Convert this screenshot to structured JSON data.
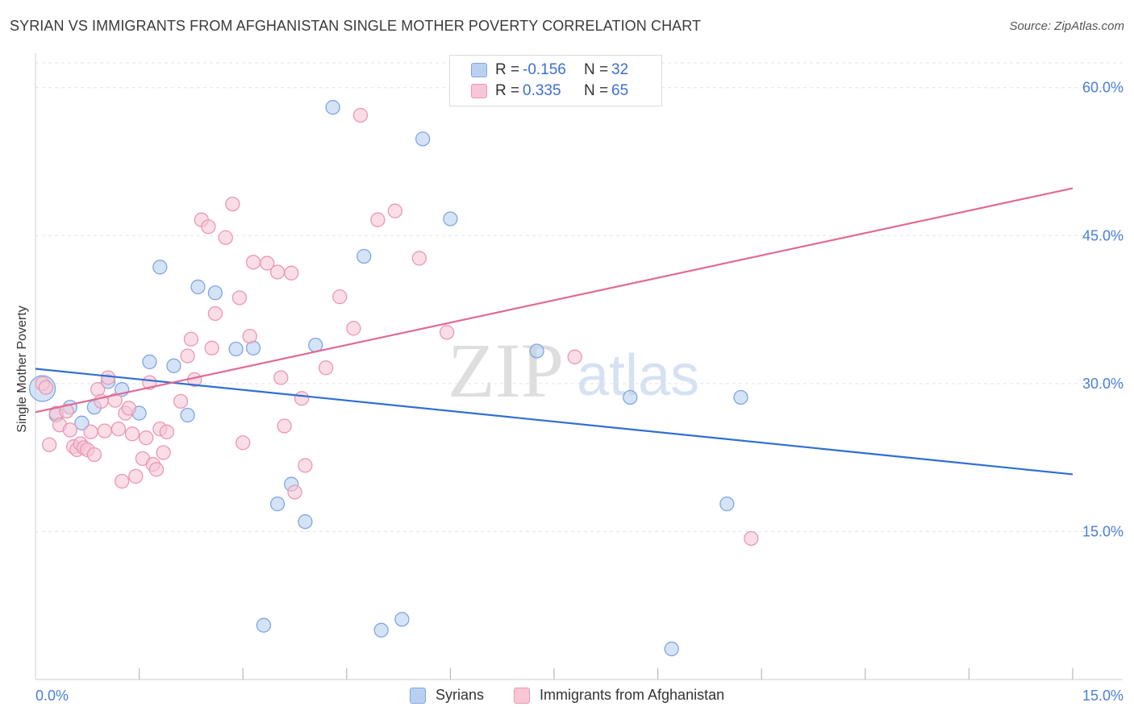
{
  "header": {
    "title": "SYRIAN VS IMMIGRANTS FROM AFGHANISTAN SINGLE MOTHER POVERTY CORRELATION CHART",
    "source": "Source: ZipAtlas.com"
  },
  "watermark": {
    "zip": "ZIP",
    "atlas": "atlas"
  },
  "legend": {
    "rows": [
      {
        "r_label": "R =",
        "r_value": "-0.156",
        "n_label": "N =",
        "n_value": "32"
      },
      {
        "r_label": "R =",
        "r_value": "0.335",
        "n_label": "N =",
        "n_value": "65"
      }
    ]
  },
  "colors": {
    "syrians_fill": "#b9d0f2",
    "syrians_stroke": "#7fa6e0",
    "syrians_line": "#2f6fd3",
    "afghan_fill": "#f8c6d5",
    "afghan_stroke": "#ea98b2",
    "afghan_line": "#e06a96",
    "tick_text": "#4a7fd0",
    "grid": "#e3e3e3"
  },
  "chart_data": {
    "type": "scatter",
    "title": "SYRIAN VS IMMIGRANTS FROM AFGHANISTAN SINGLE MOTHER POVERTY CORRELATION CHART",
    "xlabel": "",
    "ylabel": "Single Mother Poverty",
    "xlim": [
      0,
      15
    ],
    "ylim": [
      0,
      63
    ],
    "x_tick_labels": [
      {
        "value": 0,
        "label": "0.0%"
      },
      {
        "value": 15,
        "label": "15.0%"
      }
    ],
    "x_minor_ticks": [
      1.5,
      3.0,
      4.5,
      6.0,
      7.5,
      9.0,
      10.5,
      12.0,
      13.5,
      15.0
    ],
    "y_ticks": [
      {
        "value": 15,
        "label": "15.0%"
      },
      {
        "value": 30,
        "label": "30.0%"
      },
      {
        "value": 45,
        "label": "45.0%"
      },
      {
        "value": 60,
        "label": "60.0%"
      }
    ],
    "grid": true,
    "legend_position": "top-center",
    "series": [
      {
        "name": "Syrians",
        "color_key": "syrians",
        "trend": {
          "x": [
            0,
            15
          ],
          "y": [
            31.5,
            20.8
          ]
        },
        "points": [
          {
            "x": 0.1,
            "y": 29.5,
            "big": true
          },
          {
            "x": 0.3,
            "y": 26.8
          },
          {
            "x": 0.5,
            "y": 27.6
          },
          {
            "x": 0.67,
            "y": 26.0
          },
          {
            "x": 0.85,
            "y": 27.6
          },
          {
            "x": 1.05,
            "y": 30.2
          },
          {
            "x": 1.25,
            "y": 29.4
          },
          {
            "x": 1.5,
            "y": 27.0
          },
          {
            "x": 1.65,
            "y": 32.2
          },
          {
            "x": 1.8,
            "y": 41.8
          },
          {
            "x": 2.0,
            "y": 31.8
          },
          {
            "x": 2.2,
            "y": 26.8
          },
          {
            "x": 2.35,
            "y": 39.8
          },
          {
            "x": 2.6,
            "y": 39.2
          },
          {
            "x": 2.9,
            "y": 33.5
          },
          {
            "x": 3.15,
            "y": 33.6
          },
          {
            "x": 3.3,
            "y": 5.5
          },
          {
            "x": 3.5,
            "y": 17.8
          },
          {
            "x": 3.7,
            "y": 19.8
          },
          {
            "x": 3.9,
            "y": 16.0
          },
          {
            "x": 4.05,
            "y": 33.9
          },
          {
            "x": 4.3,
            "y": 58.0
          },
          {
            "x": 4.75,
            "y": 42.9
          },
          {
            "x": 5.0,
            "y": 5.0
          },
          {
            "x": 5.3,
            "y": 6.1
          },
          {
            "x": 5.6,
            "y": 54.8
          },
          {
            "x": 6.0,
            "y": 46.7
          },
          {
            "x": 7.25,
            "y": 33.3
          },
          {
            "x": 8.6,
            "y": 28.6
          },
          {
            "x": 9.2,
            "y": 3.1
          },
          {
            "x": 10.0,
            "y": 17.8
          },
          {
            "x": 10.2,
            "y": 28.6
          }
        ]
      },
      {
        "name": "Immigrants from Afghanistan",
        "color_key": "afghan",
        "trend": {
          "x": [
            0,
            15
          ],
          "y": [
            27.1,
            49.8
          ]
        },
        "points": [
          {
            "x": 0.1,
            "y": 30.0
          },
          {
            "x": 0.15,
            "y": 29.6
          },
          {
            "x": 0.2,
            "y": 23.8
          },
          {
            "x": 0.3,
            "y": 27.0
          },
          {
            "x": 0.35,
            "y": 25.8
          },
          {
            "x": 0.45,
            "y": 27.2
          },
          {
            "x": 0.5,
            "y": 25.3
          },
          {
            "x": 0.55,
            "y": 23.6
          },
          {
            "x": 0.6,
            "y": 23.3
          },
          {
            "x": 0.65,
            "y": 23.9
          },
          {
            "x": 0.7,
            "y": 23.5
          },
          {
            "x": 0.75,
            "y": 23.3
          },
          {
            "x": 0.8,
            "y": 25.1
          },
          {
            "x": 0.85,
            "y": 22.8
          },
          {
            "x": 0.9,
            "y": 29.4
          },
          {
            "x": 0.95,
            "y": 28.2
          },
          {
            "x": 1.0,
            "y": 25.2
          },
          {
            "x": 1.05,
            "y": 30.6
          },
          {
            "x": 1.15,
            "y": 28.3
          },
          {
            "x": 1.2,
            "y": 25.4
          },
          {
            "x": 1.25,
            "y": 20.1
          },
          {
            "x": 1.3,
            "y": 27.0
          },
          {
            "x": 1.35,
            "y": 27.5
          },
          {
            "x": 1.4,
            "y": 24.9
          },
          {
            "x": 1.45,
            "y": 20.6
          },
          {
            "x": 1.55,
            "y": 22.4
          },
          {
            "x": 1.6,
            "y": 24.5
          },
          {
            "x": 1.65,
            "y": 30.1
          },
          {
            "x": 1.7,
            "y": 21.8
          },
          {
            "x": 1.75,
            "y": 21.3
          },
          {
            "x": 1.8,
            "y": 25.4
          },
          {
            "x": 1.85,
            "y": 23.0
          },
          {
            "x": 1.9,
            "y": 25.1
          },
          {
            "x": 2.1,
            "y": 28.2
          },
          {
            "x": 2.2,
            "y": 32.8
          },
          {
            "x": 2.25,
            "y": 34.5
          },
          {
            "x": 2.3,
            "y": 30.4
          },
          {
            "x": 2.4,
            "y": 46.6
          },
          {
            "x": 2.5,
            "y": 45.9
          },
          {
            "x": 2.55,
            "y": 33.6
          },
          {
            "x": 2.6,
            "y": 37.1
          },
          {
            "x": 2.75,
            "y": 44.8
          },
          {
            "x": 2.85,
            "y": 48.2
          },
          {
            "x": 2.95,
            "y": 38.7
          },
          {
            "x": 3.0,
            "y": 24.0
          },
          {
            "x": 3.1,
            "y": 34.8
          },
          {
            "x": 3.15,
            "y": 42.3
          },
          {
            "x": 3.35,
            "y": 42.2
          },
          {
            "x": 3.5,
            "y": 41.3
          },
          {
            "x": 3.55,
            "y": 30.6
          },
          {
            "x": 3.6,
            "y": 25.7
          },
          {
            "x": 3.7,
            "y": 41.2
          },
          {
            "x": 3.75,
            "y": 19.0
          },
          {
            "x": 3.85,
            "y": 28.5
          },
          {
            "x": 3.9,
            "y": 21.7
          },
          {
            "x": 4.2,
            "y": 31.6
          },
          {
            "x": 4.4,
            "y": 38.8
          },
          {
            "x": 4.6,
            "y": 35.6
          },
          {
            "x": 4.7,
            "y": 57.2
          },
          {
            "x": 4.95,
            "y": 46.6
          },
          {
            "x": 5.2,
            "y": 47.5
          },
          {
            "x": 5.55,
            "y": 42.7
          },
          {
            "x": 5.95,
            "y": 35.2
          },
          {
            "x": 7.8,
            "y": 32.7
          },
          {
            "x": 10.35,
            "y": 14.3
          }
        ]
      }
    ]
  },
  "bottom_legend": [
    {
      "label": "Syrians",
      "color_key": "syrians"
    },
    {
      "label": "Immigrants from Afghanistan",
      "color_key": "afghan"
    }
  ]
}
